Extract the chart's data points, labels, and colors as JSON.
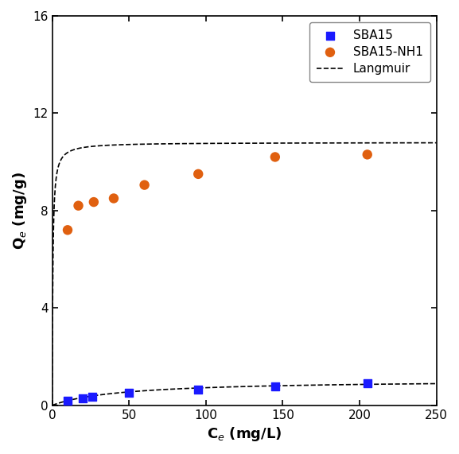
{
  "sba15_x": [
    10,
    20,
    26,
    50,
    95,
    145,
    205
  ],
  "sba15_y": [
    0.18,
    0.28,
    0.35,
    0.52,
    0.65,
    0.78,
    0.92
  ],
  "sba15nh1_x": [
    10,
    17,
    27,
    40,
    60,
    95,
    145,
    205
  ],
  "sba15nh1_y": [
    7.2,
    8.2,
    8.35,
    8.5,
    9.05,
    9.5,
    10.2,
    10.3
  ],
  "langmuir_sba15_qmax": 1.05,
  "langmuir_sba15_KL": 0.022,
  "langmuir_nh1_qmax": 10.8,
  "langmuir_nh1_KL": 2.5,
  "sba15_color": "#1a1aff",
  "sba15nh1_color": "#e06010",
  "langmuir_color": "#000000",
  "xlabel": "C$_e$ (mg/L)",
  "ylabel": "Q$_e$ (mg/g)",
  "xlim": [
    0,
    250
  ],
  "ylim": [
    0,
    16
  ],
  "xticks": [
    0,
    50,
    100,
    150,
    200,
    250
  ],
  "yticks": [
    0,
    4,
    8,
    12,
    16
  ],
  "legend_labels": [
    "SBA15",
    "SBA15-NH1",
    "Langmuir"
  ],
  "figsize": [
    5.77,
    5.71
  ],
  "dpi": 100
}
